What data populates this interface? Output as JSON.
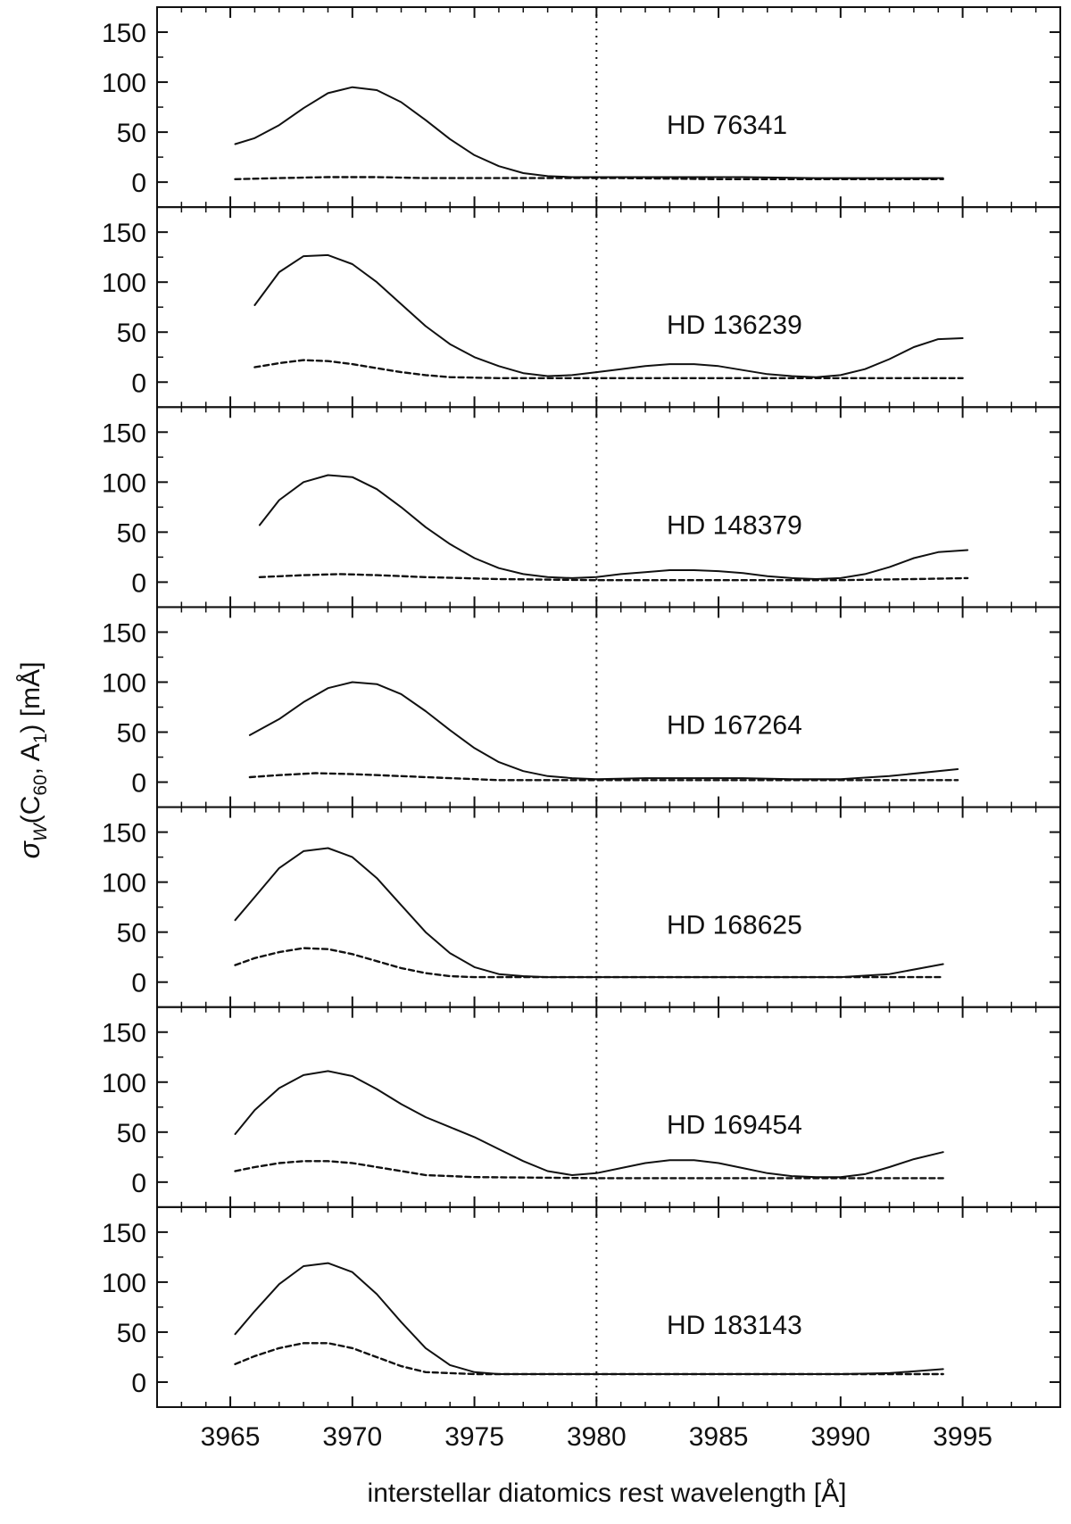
{
  "chart_data": {
    "type": "line",
    "layout": "stacked-panels",
    "xlabel": "interstellar diatomics rest wavelength [Å]",
    "ylabel": "σW(C60, A1) [mÅ]",
    "ylabel_parts": {
      "sigma": "σ",
      "sigma_sub": "W",
      "open": "(C",
      "c_sub": "60",
      "mid": ", A",
      "a_sub": "1",
      "close": ") [mÅ]"
    },
    "xlim": [
      3962,
      3999
    ],
    "ylim": [
      -25,
      175
    ],
    "xticks": [
      3965,
      3970,
      3975,
      3980,
      3985,
      3990,
      3995
    ],
    "yticks": [
      0,
      50,
      100,
      150
    ],
    "reference_line_x": 3980,
    "panels": [
      {
        "label": "HD 76341",
        "series": [
          {
            "style": "solid",
            "x": [
              3965.2,
              3966,
              3967,
              3968,
              3969,
              3970,
              3971,
              3972,
              3973,
              3974,
              3975,
              3976,
              3977,
              3978,
              3979,
              3980,
              3983,
              3986,
              3989,
              3992,
              3994.2
            ],
            "y": [
              38,
              44,
              57,
              74,
              89,
              95,
              92,
              80,
              62,
              43,
              27,
              16,
              9,
              6,
              5,
              5,
              5,
              5,
              4,
              4,
              4
            ]
          },
          {
            "style": "dashed",
            "x": [
              3965.2,
              3967,
              3969,
              3971,
              3973,
              3975,
              3978,
              3981,
              3985,
              3990,
              3994.2
            ],
            "y": [
              3,
              4,
              5,
              5,
              4,
              4,
              4,
              4,
              3,
              3,
              3
            ]
          }
        ]
      },
      {
        "label": "HD 136239",
        "series": [
          {
            "style": "solid",
            "x": [
              3966,
              3967,
              3968,
              3969,
              3970,
              3971,
              3972,
              3973,
              3974,
              3975,
              3976,
              3977,
              3978,
              3979,
              3980,
              3981,
              3982,
              3983,
              3984,
              3985,
              3986,
              3987,
              3988,
              3989,
              3990,
              3991,
              3992,
              3993,
              3994,
              3995
            ],
            "y": [
              77,
              110,
              126,
              127,
              118,
              100,
              78,
              56,
              38,
              25,
              16,
              9,
              6,
              7,
              10,
              13,
              16,
              18,
              18,
              16,
              12,
              8,
              6,
              5,
              7,
              13,
              23,
              35,
              43,
              44
            ]
          },
          {
            "style": "dashed",
            "x": [
              3966,
              3967,
              3968,
              3969,
              3970,
              3971,
              3972,
              3973,
              3974,
              3976,
              3980,
              3985,
              3990,
              3995
            ],
            "y": [
              15,
              19,
              22,
              21,
              18,
              14,
              10,
              7,
              5,
              4,
              4,
              4,
              4,
              4
            ]
          }
        ]
      },
      {
        "label": "HD 148379",
        "series": [
          {
            "style": "solid",
            "x": [
              3966.2,
              3967,
              3968,
              3969,
              3970,
              3971,
              3972,
              3973,
              3974,
              3975,
              3976,
              3977,
              3978,
              3979,
              3980,
              3981,
              3982,
              3983,
              3984,
              3985,
              3986,
              3987,
              3988,
              3989,
              3990,
              3991,
              3992,
              3993,
              3994,
              3995.2
            ],
            "y": [
              57,
              82,
              100,
              107,
              105,
              93,
              75,
              55,
              38,
              24,
              14,
              8,
              5,
              4,
              5,
              8,
              10,
              12,
              12,
              11,
              9,
              6,
              4,
              3,
              4,
              8,
              15,
              24,
              30,
              32
            ]
          },
          {
            "style": "dashed",
            "x": [
              3966.2,
              3968,
              3969.5,
              3971,
              3973,
              3976,
              3980,
              3985,
              3990,
              3993,
              3995.2
            ],
            "y": [
              5,
              7,
              8,
              7,
              5,
              3,
              2,
              2,
              2,
              3,
              4
            ]
          }
        ]
      },
      {
        "label": "HD 167264",
        "series": [
          {
            "style": "solid",
            "x": [
              3965.8,
              3967,
              3968,
              3969,
              3970,
              3971,
              3972,
              3973,
              3974,
              3975,
              3976,
              3977,
              3978,
              3979,
              3980,
              3982,
              3984,
              3986,
              3988,
              3990,
              3992,
              3994.8
            ],
            "y": [
              47,
              63,
              80,
              94,
              100,
              98,
              88,
              71,
              52,
              34,
              20,
              11,
              6,
              4,
              3,
              4,
              4,
              4,
              3,
              3,
              6,
              13
            ]
          },
          {
            "style": "dashed",
            "x": [
              3965.8,
              3967,
              3968.5,
              3970,
              3972,
              3974,
              3976,
              3978,
              3980,
              3985,
              3990,
              3994.8
            ],
            "y": [
              5,
              7,
              9,
              8,
              6,
              4,
              2,
              2,
              2,
              2,
              2,
              2
            ]
          }
        ]
      },
      {
        "label": "HD 168625",
        "series": [
          {
            "style": "solid",
            "x": [
              3965.2,
              3966,
              3967,
              3968,
              3969,
              3970,
              3971,
              3972,
              3973,
              3974,
              3975,
              3976,
              3977,
              3978,
              3979,
              3980,
              3984,
              3988,
              3990,
              3992,
              3994.2
            ],
            "y": [
              62,
              85,
              114,
              131,
              134,
              125,
              104,
              77,
              50,
              29,
              15,
              8,
              6,
              5,
              5,
              5,
              5,
              5,
              5,
              8,
              18
            ]
          },
          {
            "style": "dashed",
            "x": [
              3965.2,
              3966,
              3967,
              3968,
              3969,
              3970,
              3971,
              3972,
              3973,
              3974,
              3975,
              3977,
              3980,
              3985,
              3990,
              3994.2
            ],
            "y": [
              17,
              24,
              30,
              34,
              33,
              28,
              21,
              14,
              9,
              6,
              5,
              5,
              5,
              5,
              5,
              5
            ]
          }
        ]
      },
      {
        "label": "HD 169454",
        "series": [
          {
            "style": "solid",
            "x": [
              3965.2,
              3966,
              3967,
              3968,
              3969,
              3970,
              3971,
              3972,
              3973,
              3974,
              3975,
              3976,
              3977,
              3978,
              3979,
              3980,
              3981,
              3982,
              3983,
              3984,
              3985,
              3986,
              3987,
              3988,
              3989,
              3990,
              3991,
              3992,
              3993,
              3994.2
            ],
            "y": [
              48,
              72,
              94,
              107,
              111,
              106,
              93,
              78,
              65,
              55,
              45,
              33,
              21,
              11,
              7,
              9,
              14,
              19,
              22,
              22,
              19,
              14,
              9,
              6,
              5,
              5,
              8,
              15,
              23,
              30
            ]
          },
          {
            "style": "dashed",
            "x": [
              3965.2,
              3966,
              3967,
              3968,
              3969,
              3970,
              3971,
              3972,
              3973,
              3975,
              3980,
              3985,
              3990,
              3994.2
            ],
            "y": [
              11,
              15,
              19,
              21,
              21,
              19,
              15,
              11,
              7,
              5,
              4,
              4,
              4,
              4
            ]
          }
        ]
      },
      {
        "label": "HD 183143",
        "series": [
          {
            "style": "solid",
            "x": [
              3965.2,
              3966,
              3967,
              3968,
              3969,
              3970,
              3971,
              3972,
              3973,
              3974,
              3975,
              3976,
              3977,
              3980,
              3985,
              3990,
              3992,
              3994.2
            ],
            "y": [
              48,
              71,
              98,
              116,
              119,
              110,
              88,
              60,
              34,
              17,
              10,
              8,
              8,
              8,
              8,
              8,
              9,
              13
            ]
          },
          {
            "style": "dashed",
            "x": [
              3965.2,
              3966,
              3967,
              3968,
              3969,
              3970,
              3971,
              3972,
              3973,
              3975,
              3980,
              3985,
              3990,
              3994.2
            ],
            "y": [
              18,
              26,
              34,
              39,
              39,
              34,
              25,
              16,
              10,
              8,
              8,
              8,
              8,
              8
            ]
          }
        ]
      }
    ]
  }
}
